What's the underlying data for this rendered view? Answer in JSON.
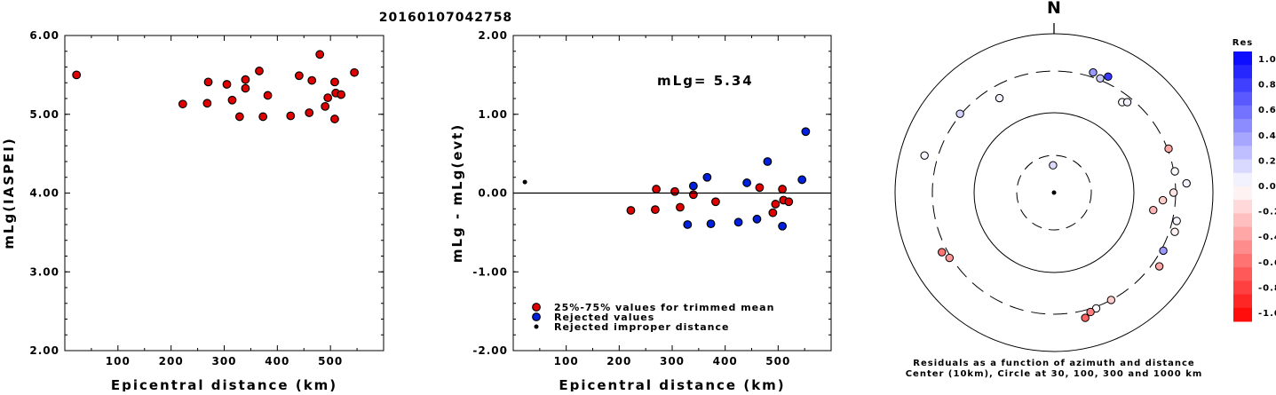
{
  "title": "20160107042758",
  "chart_data": [
    {
      "type": "scatter",
      "panel": "magnitude",
      "xlabel": "Epicentral distance (km)",
      "ylabel": "mLg(IASPEI)",
      "xlim": [
        0,
        600
      ],
      "ylim": [
        2.0,
        6.0
      ],
      "x_ticks": [
        "100",
        "200",
        "300",
        "400",
        "500"
      ],
      "y_ticks": [
        "2.00",
        "3.00",
        "4.00",
        "5.00",
        "6.00"
      ],
      "points": [
        {
          "x": 22,
          "y": 5.5
        },
        {
          "x": 222,
          "y": 5.13
        },
        {
          "x": 268,
          "y": 5.14
        },
        {
          "x": 270,
          "y": 5.41
        },
        {
          "x": 305,
          "y": 5.38
        },
        {
          "x": 315,
          "y": 5.18
        },
        {
          "x": 329,
          "y": 4.97
        },
        {
          "x": 340,
          "y": 5.44
        },
        {
          "x": 340,
          "y": 5.33
        },
        {
          "x": 366,
          "y": 5.55
        },
        {
          "x": 373,
          "y": 4.97
        },
        {
          "x": 382,
          "y": 5.24
        },
        {
          "x": 425,
          "y": 4.98
        },
        {
          "x": 441,
          "y": 5.49
        },
        {
          "x": 460,
          "y": 5.02
        },
        {
          "x": 465,
          "y": 5.43
        },
        {
          "x": 480,
          "y": 5.76
        },
        {
          "x": 490,
          "y": 5.1
        },
        {
          "x": 495,
          "y": 5.21
        },
        {
          "x": 508,
          "y": 4.94
        },
        {
          "x": 508,
          "y": 5.41
        },
        {
          "x": 510,
          "y": 5.27
        },
        {
          "x": 520,
          "y": 5.25
        },
        {
          "x": 545,
          "y": 5.53
        }
      ]
    },
    {
      "type": "scatter",
      "panel": "residuals",
      "xlabel": "Epicentral distance (km)",
      "ylabel": "mLg - mLg(evt)",
      "xlim": [
        0,
        600
      ],
      "ylim": [
        -2.0,
        2.0
      ],
      "x_ticks": [
        "100",
        "200",
        "300",
        "400",
        "500"
      ],
      "y_ticks": [
        "-2.00",
        "-1.00",
        "0.00",
        "1.00",
        "2.00"
      ],
      "annotation": "mLg= 5.34",
      "legend": [
        {
          "label": "25%-75% values for trimmed mean",
          "color": "#e00000"
        },
        {
          "label": "Rejected values",
          "color": "#0020e0"
        },
        {
          "label": "Rejected improper distance",
          "color": "#000000"
        }
      ],
      "series": [
        {
          "name": "25%-75% values for trimmed mean",
          "points": [
            {
              "x": 222,
              "y": -0.22
            },
            {
              "x": 268,
              "y": -0.21
            },
            {
              "x": 270,
              "y": 0.05
            },
            {
              "x": 305,
              "y": 0.02
            },
            {
              "x": 315,
              "y": -0.18
            },
            {
              "x": 340,
              "y": -0.02
            },
            {
              "x": 382,
              "y": -0.11
            },
            {
              "x": 465,
              "y": 0.07
            },
            {
              "x": 490,
              "y": -0.25
            },
            {
              "x": 495,
              "y": -0.14
            },
            {
              "x": 508,
              "y": 0.05
            },
            {
              "x": 510,
              "y": -0.09
            },
            {
              "x": 520,
              "y": -0.11
            }
          ]
        },
        {
          "name": "Rejected values",
          "points": [
            {
              "x": 329,
              "y": -0.4
            },
            {
              "x": 340,
              "y": 0.09
            },
            {
              "x": 366,
              "y": 0.2
            },
            {
              "x": 373,
              "y": -0.39
            },
            {
              "x": 425,
              "y": -0.37
            },
            {
              "x": 441,
              "y": 0.13
            },
            {
              "x": 460,
              "y": -0.33
            },
            {
              "x": 480,
              "y": 0.4
            },
            {
              "x": 508,
              "y": -0.42
            },
            {
              "x": 545,
              "y": 0.17
            },
            {
              "x": 552,
              "y": 0.78
            }
          ]
        },
        {
          "name": "Rejected improper distance",
          "points": [
            {
              "x": 22,
              "y": 0.14
            }
          ]
        }
      ]
    },
    {
      "type": "scatter",
      "panel": "azimuth",
      "north_label": "N",
      "caption_line1": "Residuals as a function of azimuth and distance",
      "caption_line2": "Center (10km), Circle at 30, 100, 300 and 1000 km",
      "colorbar_title": "Res",
      "colorbar_ticks": [
        "1.0",
        "0.8",
        "0.6",
        "0.4",
        "0.2",
        "0.0",
        "-0.2",
        "-0.4",
        "-0.6",
        "-0.8",
        "-1.0"
      ],
      "points": [
        {
          "azimuth": 18,
          "distance_km": 390,
          "residual": 0.4
        },
        {
          "azimuth": 22,
          "distance_km": 330,
          "residual": 0.2
        },
        {
          "azimuth": 25,
          "distance_km": 420,
          "residual": 0.78
        },
        {
          "azimuth": 37,
          "distance_km": 260,
          "residual": 0.02
        },
        {
          "azimuth": 39,
          "distance_km": 275,
          "residual": 0.05
        },
        {
          "azimuth": 330,
          "distance_km": 240,
          "residual": 0.05
        },
        {
          "azimuth": 310,
          "distance_km": 320,
          "residual": 0.17
        },
        {
          "azimuth": 286,
          "distance_km": 545,
          "residual": 0.03
        },
        {
          "azimuth": 358,
          "distance_km": 22,
          "residual": 0.14
        },
        {
          "azimuth": 69,
          "distance_km": 320,
          "residual": -0.35
        },
        {
          "azimuth": 80,
          "distance_km": 320,
          "residual": 0.02
        },
        {
          "azimuth": 86,
          "distance_km": 510,
          "residual": 0.05
        },
        {
          "azimuth": 90,
          "distance_km": 290,
          "residual": -0.1
        },
        {
          "azimuth": 94,
          "distance_km": 240,
          "residual": -0.2
        },
        {
          "azimuth": 100,
          "distance_km": 200,
          "residual": -0.3
        },
        {
          "azimuth": 103,
          "distance_km": 380,
          "residual": 0.03
        },
        {
          "azimuth": 108,
          "distance_km": 400,
          "residual": -0.05
        },
        {
          "azimuth": 118,
          "distance_km": 340,
          "residual": 0.4
        },
        {
          "azimuth": 125,
          "distance_km": 430,
          "residual": -0.35
        },
        {
          "azimuth": 152,
          "distance_km": 300,
          "residual": -0.2
        },
        {
          "azimuth": 160,
          "distance_km": 330,
          "residual": 0.02
        },
        {
          "azimuth": 163,
          "distance_km": 360,
          "residual": -0.5
        },
        {
          "azimuth": 166,
          "distance_km": 440,
          "residual": -0.62
        },
        {
          "azimuth": 238,
          "distance_km": 330,
          "residual": -0.4
        },
        {
          "azimuth": 242,
          "distance_km": 400,
          "residual": -0.55
        }
      ]
    }
  ]
}
